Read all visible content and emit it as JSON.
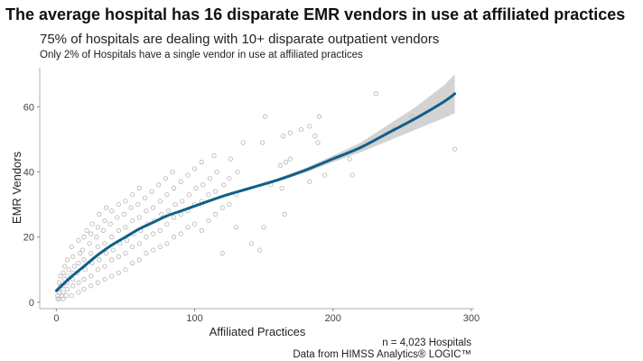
{
  "chart_data": {
    "type": "scatter",
    "title": "The average hospital has 16 disparate EMR vendors in use at affiliated practices",
    "subtitle": "75% of hospitals are dealing with 10+ disparate outpatient vendors",
    "subsubtitle": "Only 2% of Hospitals have a single vendor in use at affiliated practices",
    "xlabel": "Affiliated Practices",
    "ylabel": "EMR Vendors",
    "xlim": [
      -12,
      302
    ],
    "ylim": [
      -2,
      72
    ],
    "xticks": [
      0,
      100,
      200,
      300
    ],
    "yticks": [
      0,
      20,
      40,
      60
    ],
    "grid": false,
    "caption": [
      "n = 4,023 Hospitals",
      "Data from HIMSS Analytics® LOGIC™"
    ],
    "colors": {
      "points": "#b5b5b5",
      "fit": "#0f5f8a",
      "band": "#d3d3d3"
    },
    "points": [
      [
        1,
        1
      ],
      [
        1,
        2
      ],
      [
        2,
        1
      ],
      [
        2,
        3
      ],
      [
        2,
        4
      ],
      [
        3,
        5
      ],
      [
        2,
        6
      ],
      [
        3,
        8
      ],
      [
        4,
        2
      ],
      [
        5,
        1
      ],
      [
        5,
        3
      ],
      [
        5,
        5
      ],
      [
        6,
        7
      ],
      [
        5,
        9
      ],
      [
        6,
        11
      ],
      [
        7,
        2
      ],
      [
        8,
        4
      ],
      [
        8,
        6
      ],
      [
        8,
        8
      ],
      [
        9,
        10
      ],
      [
        8,
        13
      ],
      [
        11,
        2
      ],
      [
        12,
        5
      ],
      [
        12,
        7
      ],
      [
        12,
        9
      ],
      [
        13,
        11
      ],
      [
        12,
        14
      ],
      [
        11,
        17
      ],
      [
        16,
        3
      ],
      [
        16,
        6
      ],
      [
        15,
        9
      ],
      [
        16,
        12
      ],
      [
        17,
        15
      ],
      [
        16,
        19
      ],
      [
        20,
        4
      ],
      [
        20,
        7
      ],
      [
        21,
        10
      ],
      [
        20,
        13
      ],
      [
        19,
        16
      ],
      [
        20,
        20
      ],
      [
        22,
        22
      ],
      [
        25,
        5
      ],
      [
        25,
        8
      ],
      [
        26,
        12
      ],
      [
        25,
        15
      ],
      [
        24,
        18
      ],
      [
        25,
        21
      ],
      [
        26,
        24
      ],
      [
        30,
        6
      ],
      [
        30,
        10
      ],
      [
        31,
        13
      ],
      [
        30,
        17
      ],
      [
        29,
        20
      ],
      [
        30,
        23
      ],
      [
        31,
        27
      ],
      [
        35,
        7
      ],
      [
        35,
        11
      ],
      [
        36,
        15
      ],
      [
        35,
        18
      ],
      [
        34,
        22
      ],
      [
        35,
        25
      ],
      [
        36,
        29
      ],
      [
        40,
        8
      ],
      [
        40,
        13
      ],
      [
        41,
        16
      ],
      [
        40,
        20
      ],
      [
        39,
        24
      ],
      [
        40,
        28
      ],
      [
        45,
        9
      ],
      [
        45,
        14
      ],
      [
        46,
        18
      ],
      [
        45,
        22
      ],
      [
        44,
        26
      ],
      [
        45,
        30
      ],
      [
        50,
        10
      ],
      [
        50,
        15
      ],
      [
        51,
        19
      ],
      [
        50,
        23
      ],
      [
        49,
        27
      ],
      [
        50,
        31
      ],
      [
        55,
        12
      ],
      [
        55,
        17
      ],
      [
        56,
        21
      ],
      [
        55,
        25
      ],
      [
        54,
        29
      ],
      [
        55,
        33
      ],
      [
        60,
        13
      ],
      [
        60,
        18
      ],
      [
        61,
        22
      ],
      [
        60,
        26
      ],
      [
        59,
        30
      ],
      [
        60,
        35
      ],
      [
        65,
        15
      ],
      [
        65,
        20
      ],
      [
        66,
        24
      ],
      [
        65,
        28
      ],
      [
        64,
        32
      ],
      [
        70,
        16
      ],
      [
        70,
        21
      ],
      [
        71,
        25
      ],
      [
        70,
        29
      ],
      [
        69,
        34
      ],
      [
        75,
        17
      ],
      [
        75,
        22
      ],
      [
        76,
        27
      ],
      [
        75,
        31
      ],
      [
        74,
        36
      ],
      [
        80,
        18
      ],
      [
        80,
        24
      ],
      [
        81,
        28
      ],
      [
        80,
        33
      ],
      [
        79,
        38
      ],
      [
        85,
        20
      ],
      [
        85,
        26
      ],
      [
        86,
        30
      ],
      [
        85,
        35
      ],
      [
        84,
        40
      ],
      [
        90,
        21
      ],
      [
        90,
        27
      ],
      [
        91,
        31
      ],
      [
        90,
        37
      ],
      [
        95,
        23
      ],
      [
        95,
        28
      ],
      [
        96,
        33
      ],
      [
        95,
        39
      ],
      [
        100,
        24
      ],
      [
        100,
        30
      ],
      [
        101,
        35
      ],
      [
        100,
        41
      ],
      [
        105,
        22
      ],
      [
        105,
        31
      ],
      [
        106,
        36
      ],
      [
        105,
        43
      ],
      [
        110,
        25
      ],
      [
        110,
        33
      ],
      [
        111,
        38
      ],
      [
        115,
        27
      ],
      [
        115,
        34
      ],
      [
        116,
        40
      ],
      [
        114,
        45
      ],
      [
        120,
        15
      ],
      [
        120,
        29
      ],
      [
        121,
        36
      ],
      [
        125,
        30
      ],
      [
        125,
        38
      ],
      [
        126,
        44
      ],
      [
        130,
        23
      ],
      [
        130,
        33
      ],
      [
        131,
        40
      ],
      [
        135,
        49
      ],
      [
        141,
        18
      ],
      [
        147,
        16
      ],
      [
        149,
        49
      ],
      [
        150,
        23
      ],
      [
        151,
        57
      ],
      [
        155,
        36
      ],
      [
        162,
        42
      ],
      [
        163,
        35
      ],
      [
        164,
        51
      ],
      [
        165,
        27
      ],
      [
        166,
        43
      ],
      [
        169,
        44
      ],
      [
        169,
        52
      ],
      [
        177,
        53
      ],
      [
        183,
        37
      ],
      [
        183,
        54
      ],
      [
        187,
        51
      ],
      [
        189,
        49
      ],
      [
        190,
        57
      ],
      [
        194,
        39
      ],
      [
        212,
        44
      ],
      [
        214,
        39
      ],
      [
        231,
        64
      ],
      [
        244,
        53
      ],
      [
        257,
        57
      ],
      [
        288,
        47
      ]
    ],
    "fit": {
      "method": "smooth",
      "x": [
        0,
        10,
        20,
        30,
        40,
        50,
        60,
        70,
        80,
        90,
        100,
        120,
        140,
        160,
        180,
        200,
        220,
        240,
        260,
        280,
        288
      ],
      "y": [
        3.5,
        7.5,
        11,
        14.5,
        17.5,
        20,
        22.5,
        24.5,
        26.5,
        28,
        29.5,
        32.5,
        35,
        37.5,
        40.5,
        44,
        47.5,
        52,
        56.5,
        61.5,
        64
      ],
      "lower": [
        2.8,
        7.1,
        10.7,
        14.2,
        17.2,
        19.7,
        22.2,
        24.2,
        26.2,
        27.7,
        29.2,
        32.1,
        34.6,
        37,
        39.8,
        43,
        46,
        49.5,
        53,
        56.5,
        58
      ],
      "upper": [
        4.2,
        7.9,
        11.3,
        14.8,
        17.8,
        20.3,
        22.8,
        24.8,
        26.8,
        28.3,
        29.8,
        32.9,
        35.4,
        38,
        41.2,
        45,
        49,
        54.5,
        60,
        66.5,
        70
      ]
    }
  }
}
